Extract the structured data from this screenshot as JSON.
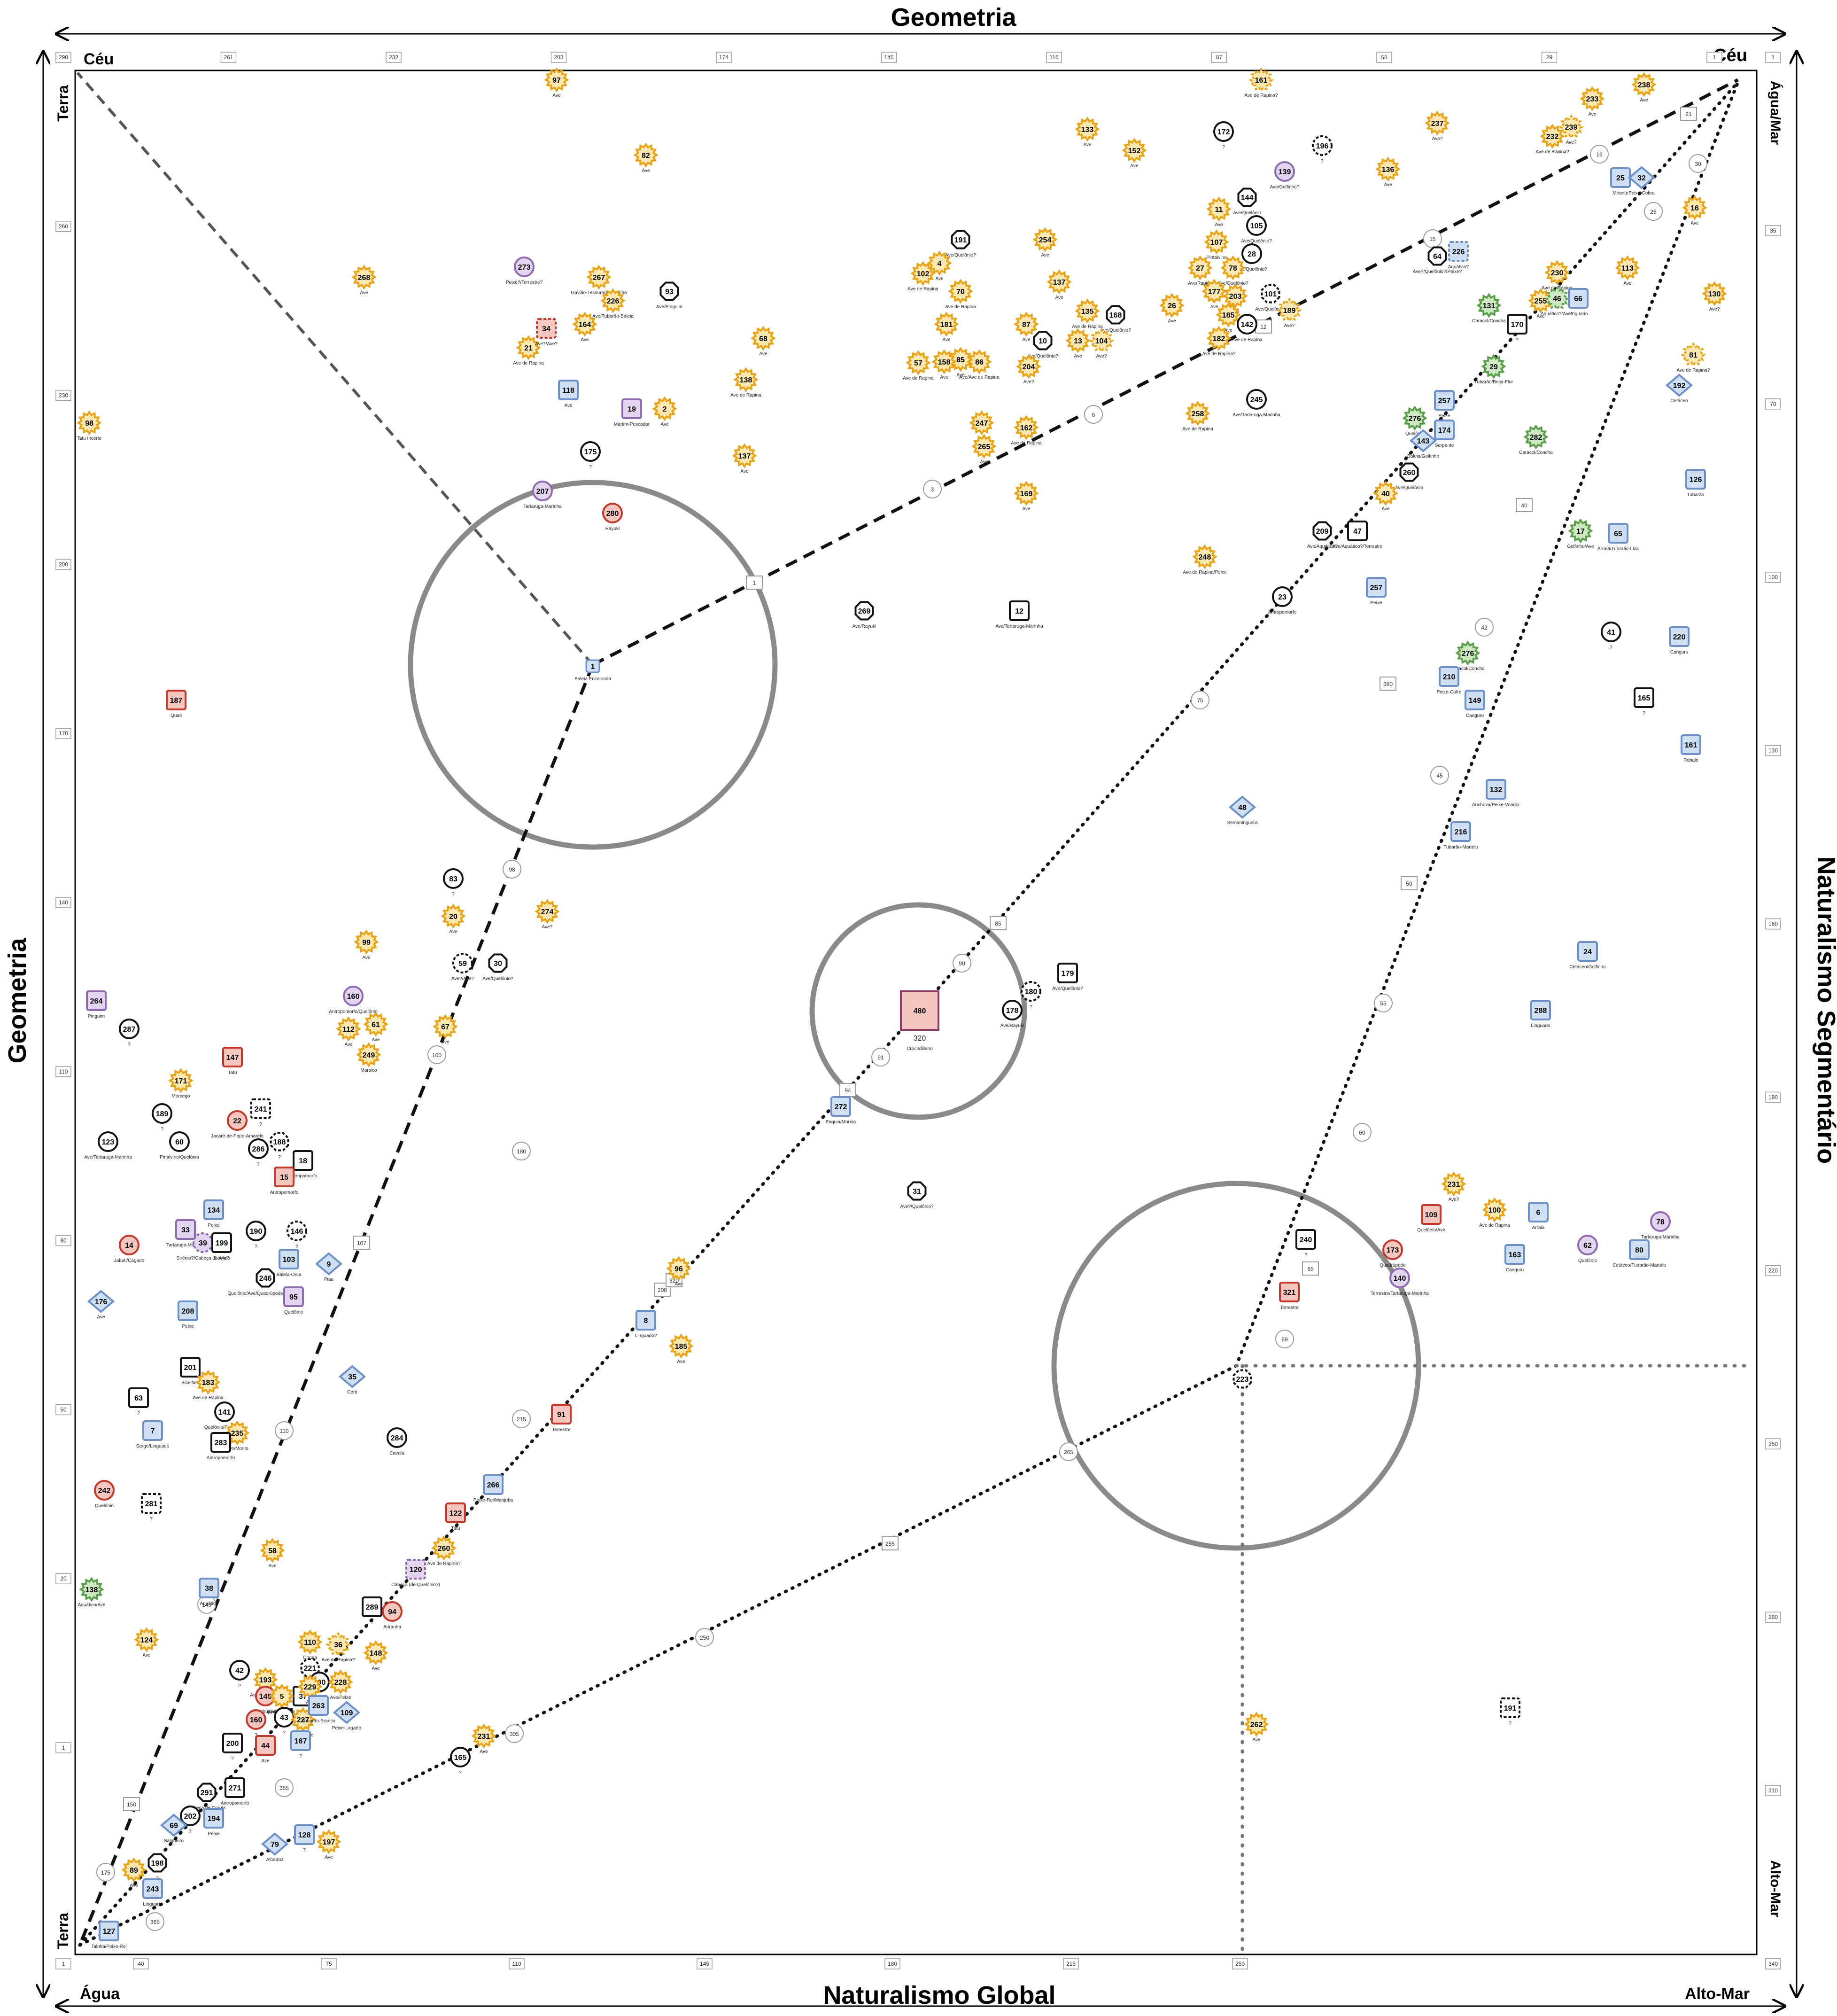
{
  "titles": {
    "top": "Geometria",
    "bottom": "Naturalismo Global",
    "left": "Geometria",
    "right": "Naturalismo Segmentário"
  },
  "corners": {
    "top_left": "Céu",
    "top_right": "Céu",
    "bottom_left": "Água",
    "bottom_right": "Alto-Mar",
    "left_top": "Terra",
    "left_bottom": "Terra",
    "right_top": "Água/Mar",
    "right_bottom": "Alto-Mar"
  },
  "axis_ticks": {
    "top": [
      "290",
      "261",
      "232",
      "203",
      "174",
      "145",
      "116",
      "87",
      "58",
      "29",
      "1"
    ],
    "bottom": [
      "1",
      "40",
      "75",
      "110",
      "145",
      "180",
      "215",
      "250",
      "340"
    ],
    "left": [
      "290",
      "260",
      "230",
      "200",
      "170",
      "140",
      "110",
      "80",
      "50",
      "20",
      "1"
    ],
    "right": [
      "1",
      "35",
      "70",
      "100",
      "130",
      "160",
      "190",
      "220",
      "250",
      "280",
      "310",
      "340"
    ]
  },
  "colors": {
    "bird": "#e8a317",
    "bird_fill": "#fbe7b0",
    "blue": "#6b8fc6",
    "blue_fill": "#cfe0f5",
    "red": "#c0392b",
    "red_fill": "#f6c6c0",
    "purple": "#8e6bb0",
    "purple_fill": "#e3d4ef",
    "green": "#5a9e4b",
    "green_fill": "#cfe8c4",
    "black": "#111111",
    "grey_circle": "#8a8a8a"
  },
  "center_labels": {
    "box_480": "480",
    "box_480_sub": "320",
    "box_480_name": "Crocodiliano",
    "node_1": "1",
    "node_1_name": "Baleia Encalhada"
  },
  "nodes": [
    {
      "n": "97",
      "t": "Ave",
      "c": "bird"
    },
    {
      "n": "161",
      "t": "Ave de Rapina?",
      "c": "bird"
    },
    {
      "n": "233",
      "t": "Ave",
      "c": "bird"
    },
    {
      "n": "238",
      "t": "Ave",
      "c": "bird"
    },
    {
      "n": "133",
      "t": "Ave",
      "c": "bird"
    },
    {
      "n": "152",
      "t": "Ave",
      "c": "bird"
    },
    {
      "n": "172",
      "t": "?",
      "c": "black"
    },
    {
      "n": "196",
      "t": "?",
      "c": "black"
    },
    {
      "n": "237",
      "t": "Ave?",
      "c": "bird"
    },
    {
      "n": "232",
      "t": "Ave de Rapina?",
      "c": "bird"
    },
    {
      "n": "239",
      "t": "Ave?",
      "c": "bird"
    },
    {
      "n": "82",
      "t": "Ave",
      "c": "bird"
    },
    {
      "n": "139",
      "t": "Ave/Golfinho?",
      "c": "purple"
    },
    {
      "n": "136",
      "t": "Ave",
      "c": "bird"
    },
    {
      "n": "25",
      "t": "Mirante",
      "c": "blue"
    },
    {
      "n": "32",
      "t": "Peixe-Cobra",
      "c": "blue"
    },
    {
      "n": "144",
      "t": "Ave/Quelônio",
      "c": "black"
    },
    {
      "n": "11",
      "t": "Ave",
      "c": "bird"
    },
    {
      "n": "105",
      "t": "Ave/Quelônio?",
      "c": "black"
    },
    {
      "n": "16",
      "t": "Ave",
      "c": "bird"
    },
    {
      "n": "191",
      "t": "Ave/Quelônio?",
      "c": "black"
    },
    {
      "n": "254",
      "t": "Ave",
      "c": "bird"
    },
    {
      "n": "107",
      "t": "Pintalvino",
      "c": "bird"
    },
    {
      "n": "28",
      "t": "Ave/Quelônio?",
      "c": "black"
    },
    {
      "n": "64",
      "t": "Ave?/Quelônio?/Peixe?",
      "c": "black"
    },
    {
      "n": "226",
      "t": "Aquático?",
      "c": "blue"
    },
    {
      "n": "268",
      "t": "Ave",
      "c": "bird"
    },
    {
      "n": "267",
      "t": "Gavião-Tesoura/Andorinha",
      "c": "bird"
    },
    {
      "n": "93",
      "t": "Ave/Pinguim",
      "c": "black"
    },
    {
      "n": "102",
      "t": "Ave de Rapina",
      "c": "bird"
    },
    {
      "n": "4",
      "t": "Ave",
      "c": "bird"
    },
    {
      "n": "137",
      "t": "Ave",
      "c": "bird"
    },
    {
      "n": "27",
      "t": "Ave/Rapina",
      "c": "bird"
    },
    {
      "n": "78",
      "t": "Ave/Quelônio?",
      "c": "bird"
    },
    {
      "n": "230",
      "t": "Ave de Rapina",
      "c": "bird"
    },
    {
      "n": "113",
      "t": "Ave",
      "c": "bird"
    },
    {
      "n": "226",
      "t": "Ave/Tubarão-Baleia",
      "c": "bird"
    },
    {
      "n": "70",
      "t": "Ave de Rapina",
      "c": "bird"
    },
    {
      "n": "177",
      "t": "Ave",
      "c": "bird"
    },
    {
      "n": "203",
      "t": "Ave",
      "c": "bird"
    },
    {
      "n": "101",
      "t": "Ave/Quelônio?",
      "c": "black"
    },
    {
      "n": "131",
      "t": "Caracol/Concha",
      "c": "green"
    },
    {
      "n": "255",
      "t": "Ave",
      "c": "bird"
    },
    {
      "n": "46",
      "t": "Aquático?/Ave?",
      "c": "green"
    },
    {
      "n": "66",
      "t": "Linguado",
      "c": "blue"
    },
    {
      "n": "130",
      "t": "Ave?",
      "c": "bird"
    },
    {
      "n": "164",
      "t": "Ave",
      "c": "bird"
    },
    {
      "n": "135",
      "t": "Ave de Rapina",
      "c": "bird"
    },
    {
      "n": "168",
      "t": "Ave/Quelônio?",
      "c": "black"
    },
    {
      "n": "26",
      "t": "Ave",
      "c": "bird"
    },
    {
      "n": "185",
      "t": "Ave",
      "c": "bird"
    },
    {
      "n": "142",
      "t": "Ave de Rapina",
      "c": "black"
    },
    {
      "n": "189",
      "t": "Ave?",
      "c": "bird"
    },
    {
      "n": "170",
      "t": "?",
      "c": "black"
    },
    {
      "n": "181",
      "t": "Ave",
      "c": "bird"
    },
    {
      "n": "87",
      "t": "Ave",
      "c": "bird"
    },
    {
      "n": "10",
      "t": "Ave/Quelônio?",
      "c": "black"
    },
    {
      "n": "13",
      "t": "Ave",
      "c": "bird"
    },
    {
      "n": "104",
      "t": "Ave?",
      "c": "bird"
    },
    {
      "n": "182",
      "t": "Ave de Rapina?",
      "c": "bird"
    },
    {
      "n": "21",
      "t": "Ave de Rapina",
      "c": "bird"
    },
    {
      "n": "68",
      "t": "Ave",
      "c": "bird"
    },
    {
      "n": "85",
      "t": "Ave",
      "c": "bird"
    },
    {
      "n": "57",
      "t": "Ave de Rapina",
      "c": "bird"
    },
    {
      "n": "158",
      "t": "Ave",
      "c": "bird"
    },
    {
      "n": "86",
      "t": "Ave/Ave de Rapina",
      "c": "bird"
    },
    {
      "n": "204",
      "t": "Ave?",
      "c": "bird"
    },
    {
      "n": "81",
      "t": "Ave de Rapina?",
      "c": "bird"
    },
    {
      "n": "29",
      "t": "Tubarão/Beija-Flor",
      "c": "green"
    },
    {
      "n": "192",
      "t": "Cetáceo",
      "c": "blue"
    },
    {
      "n": "138",
      "t": "Ave de Rapina",
      "c": "bird"
    },
    {
      "n": "19",
      "t": "Martim-Pescador",
      "c": "purple"
    },
    {
      "n": "2",
      "t": "Ave",
      "c": "bird"
    },
    {
      "n": "257",
      "t": "Peixe",
      "c": "blue"
    },
    {
      "n": "245",
      "t": "Ave/Tartaruga-Marinha",
      "c": "black"
    },
    {
      "n": "258",
      "t": "Ave de Rapina",
      "c": "bird"
    },
    {
      "n": "276",
      "t": "Quelônio",
      "c": "green"
    },
    {
      "n": "98",
      "t": "Tatu Incerto",
      "c": "bird"
    },
    {
      "n": "247",
      "t": "Ave",
      "c": "bird"
    },
    {
      "n": "162",
      "t": "Ave de Rapina",
      "c": "bird"
    },
    {
      "n": "174",
      "t": "Serpente",
      "c": "blue"
    },
    {
      "n": "282",
      "t": "Caracol/Concha",
      "c": "green"
    },
    {
      "n": "137",
      "t": "Ave",
      "c": "bird"
    },
    {
      "n": "265",
      "t": "Ave",
      "c": "bird"
    },
    {
      "n": "143",
      "t": "Baleia/Golfinho",
      "c": "blue"
    },
    {
      "n": "126",
      "t": "Tubarão",
      "c": "blue"
    },
    {
      "n": "207",
      "t": "Tartaruga-Marinha",
      "c": "purple"
    },
    {
      "n": "169",
      "t": "Ave",
      "c": "bird"
    },
    {
      "n": "260",
      "t": "Ave/Quelônio",
      "c": "black"
    },
    {
      "n": "40",
      "t": "Ave",
      "c": "bird"
    },
    {
      "n": "17",
      "t": "Golfinho/Ave",
      "c": "green"
    },
    {
      "n": "65",
      "t": "Arraia/Tubarão-Lixa",
      "c": "blue"
    },
    {
      "n": "209",
      "t": "Ave/Aquático?",
      "c": "black"
    },
    {
      "n": "47",
      "t": "Ave/Aquático?/Terrestre",
      "c": "black"
    },
    {
      "n": "248",
      "t": "Ave de Rapina/Peixe",
      "c": "bird"
    },
    {
      "n": "257",
      "t": "Peixe",
      "c": "blue"
    },
    {
      "n": "269",
      "t": "Ave/Rayuki",
      "c": "black"
    },
    {
      "n": "12",
      "t": "Ave/Tartaruga-Marinha",
      "c": "black"
    },
    {
      "n": "23",
      "t": "Antropomorfo",
      "c": "black"
    },
    {
      "n": "41",
      "t": "?",
      "c": "black"
    },
    {
      "n": "220",
      "t": "Canguru",
      "c": "blue"
    },
    {
      "n": "187",
      "t": "Quati",
      "c": "red"
    },
    {
      "n": "276",
      "t": "Caracol/Concha",
      "c": "green"
    },
    {
      "n": "210",
      "t": "Peixe-Cofre",
      "c": "blue"
    },
    {
      "n": "149",
      "t": "Canguru",
      "c": "blue"
    },
    {
      "n": "165",
      "t": "?",
      "c": "black"
    },
    {
      "n": "161",
      "t": "Robalo",
      "c": "blue"
    },
    {
      "n": "132",
      "t": "Anchova/Peixe-Voador",
      "c": "blue"
    },
    {
      "n": "48",
      "t": "Semaninguara",
      "c": "blue"
    },
    {
      "n": "216",
      "t": "Tubarão-Martelo",
      "c": "blue"
    },
    {
      "n": "83",
      "t": "?",
      "c": "black"
    },
    {
      "n": "274",
      "t": "Ave?",
      "c": "bird"
    },
    {
      "n": "20",
      "t": "Ave",
      "c": "bird"
    },
    {
      "n": "24",
      "t": "Cetáceo/Golfinho",
      "c": "blue"
    },
    {
      "n": "99",
      "t": "Ave",
      "c": "bird"
    },
    {
      "n": "59",
      "t": "Ave?/Ave?",
      "c": "black"
    },
    {
      "n": "30",
      "t": "Ave/Quelônio?",
      "c": "black"
    },
    {
      "n": "179",
      "t": "Ave/Quelônio?",
      "c": "black"
    },
    {
      "n": "180",
      "t": "?",
      "c": "black"
    },
    {
      "n": "178",
      "t": "Ave/Rayuki",
      "c": "black"
    },
    {
      "n": "160",
      "t": "Antropomorfo/Quelônio",
      "c": "purple"
    },
    {
      "n": "264",
      "t": "Pinguim",
      "c": "purple"
    },
    {
      "n": "112",
      "t": "Ave",
      "c": "bird"
    },
    {
      "n": "61",
      "t": "Ave",
      "c": "bird"
    },
    {
      "n": "67",
      "t": "Ave",
      "c": "bird"
    },
    {
      "n": "288",
      "t": "Linguado",
      "c": "blue"
    },
    {
      "n": "287",
      "t": "?",
      "c": "black"
    },
    {
      "n": "147",
      "t": "Tatu",
      "c": "red"
    },
    {
      "n": "249",
      "t": "Marsico",
      "c": "bird"
    },
    {
      "n": "171",
      "t": "Morcego",
      "c": "bird"
    },
    {
      "n": "272",
      "t": "Enguia/Moreia",
      "c": "blue"
    },
    {
      "n": "189",
      "t": "?",
      "c": "black"
    },
    {
      "n": "22",
      "t": "Jacaré-de-Papo-Amarelo",
      "c": "red"
    },
    {
      "n": "241",
      "t": "?",
      "c": "black"
    },
    {
      "n": "123",
      "t": "Ave/Tartaruga-Marinha",
      "c": "black"
    },
    {
      "n": "60",
      "t": "Pinalvino/Quelônio",
      "c": "black"
    },
    {
      "n": "188",
      "t": "?",
      "c": "black"
    },
    {
      "n": "18",
      "t": "Antropomorfo",
      "c": "black"
    },
    {
      "n": "286",
      "t": "?",
      "c": "black"
    },
    {
      "n": "15",
      "t": "Antropomorfo",
      "c": "red"
    },
    {
      "n": "31",
      "t": "Ave?/Quelônio?",
      "c": "black"
    },
    {
      "n": "231",
      "t": "Ave?",
      "c": "bird"
    },
    {
      "n": "134",
      "t": "Peixe",
      "c": "blue"
    },
    {
      "n": "109",
      "t": "Quelônio/Ave",
      "c": "red"
    },
    {
      "n": "100",
      "t": "Ave de Rapina",
      "c": "bird"
    },
    {
      "n": "6",
      "t": "Arraia",
      "c": "blue"
    },
    {
      "n": "78",
      "t": "Tartaruga-Marinha",
      "c": "purple"
    },
    {
      "n": "33",
      "t": "Tartaruga-Marinha",
      "c": "purple"
    },
    {
      "n": "39",
      "t": "Sirênio?/Cabeça de Ave?",
      "c": "purple"
    },
    {
      "n": "199",
      "t": "Bicefalo",
      "c": "black"
    },
    {
      "n": "190",
      "t": "?",
      "c": "black"
    },
    {
      "n": "146",
      "t": "?",
      "c": "black"
    },
    {
      "n": "14",
      "t": "Jabuti/Cágado",
      "c": "red"
    },
    {
      "n": "240",
      "t": "?",
      "c": "black"
    },
    {
      "n": "173",
      "t": "Quadrúpede",
      "c": "red"
    },
    {
      "n": "163",
      "t": "Canguru",
      "c": "blue"
    },
    {
      "n": "62",
      "t": "Quelônio",
      "c": "purple"
    },
    {
      "n": "80",
      "t": "Cetáceo/Tubarão-Martelo",
      "c": "blue"
    },
    {
      "n": "103",
      "t": "Baleia-Orca",
      "c": "blue"
    },
    {
      "n": "9",
      "t": "Piau",
      "c": "blue"
    },
    {
      "n": "246",
      "t": "Quelônio/Ave/Quadrúpede/Quelônio",
      "c": "black"
    },
    {
      "n": "95",
      "t": "Quelônio",
      "c": "purple"
    },
    {
      "n": "96",
      "t": "Ave",
      "c": "bird"
    },
    {
      "n": "321",
      "t": "Terrestre",
      "c": "red"
    },
    {
      "n": "140",
      "t": "Terrestre/Tartaruga-Marinha",
      "c": "purple"
    },
    {
      "n": "176",
      "t": "Ave",
      "c": "blue"
    },
    {
      "n": "208",
      "t": "Peixe",
      "c": "blue"
    },
    {
      "n": "8",
      "t": "Linguado?",
      "c": "blue"
    },
    {
      "n": "185",
      "t": "Ave",
      "c": "bird"
    },
    {
      "n": "201",
      "t": "Biceifalo",
      "c": "black"
    },
    {
      "n": "183",
      "t": "Ave de Rapina",
      "c": "bird"
    },
    {
      "n": "35",
      "t": "Cerú",
      "c": "blue"
    },
    {
      "n": "223",
      "t": "?",
      "c": "black"
    },
    {
      "n": "63",
      "t": "?",
      "c": "black"
    },
    {
      "n": "141",
      "t": "Quelônio/Pintalvino",
      "c": "black"
    },
    {
      "n": "7",
      "t": "Sargo/Linguado",
      "c": "blue"
    },
    {
      "n": "235",
      "t": "Ave/Morito",
      "c": "bird"
    },
    {
      "n": "283",
      "t": "Antropomorfo",
      "c": "black"
    },
    {
      "n": "284",
      "t": "Cavala",
      "c": "black"
    },
    {
      "n": "91",
      "t": "Terrestre",
      "c": "red"
    },
    {
      "n": "242",
      "t": "Quelônio",
      "c": "red"
    },
    {
      "n": "281",
      "t": "?",
      "c": "black"
    },
    {
      "n": "266",
      "t": "Peixe-Rei/Manjuba",
      "c": "blue"
    },
    {
      "n": "122",
      "t": "Tatu",
      "c": "red"
    },
    {
      "n": "58",
      "t": "Ave",
      "c": "bird"
    },
    {
      "n": "260",
      "t": "Ave de Rapina?",
      "c": "bird"
    },
    {
      "n": "138",
      "t": "Aquático/Ave",
      "c": "green"
    },
    {
      "n": "120",
      "t": "Cabeça (de Quelônio?)",
      "c": "purple"
    },
    {
      "n": "38",
      "t": "Aquático",
      "c": "blue"
    },
    {
      "n": "289",
      "t": "?",
      "c": "black"
    },
    {
      "n": "94",
      "t": "Ariranha",
      "c": "red"
    },
    {
      "n": "124",
      "t": "Ave",
      "c": "bird"
    },
    {
      "n": "110",
      "t": "Coruja",
      "c": "bird"
    },
    {
      "n": "36",
      "t": "Ave de Rapina?",
      "c": "bird"
    },
    {
      "n": "148",
      "t": "Ave",
      "c": "bird"
    },
    {
      "n": "42",
      "t": "?",
      "c": "black"
    },
    {
      "n": "221",
      "t": "?",
      "c": "black"
    },
    {
      "n": "193",
      "t": "Ave de Rapina",
      "c": "bird"
    },
    {
      "n": "290",
      "t": "?",
      "c": "black"
    },
    {
      "n": "228",
      "t": "Ave/Peixe",
      "c": "bird"
    },
    {
      "n": "145",
      "t": "Quadrúpede",
      "c": "red"
    },
    {
      "n": "37",
      "t": "?",
      "c": "black"
    },
    {
      "n": "5",
      "t": "Quadrúpede",
      "c": "bird"
    },
    {
      "n": "229",
      "t": "Ave",
      "c": "bird"
    },
    {
      "n": "262",
      "t": "Ave",
      "c": "bird"
    },
    {
      "n": "191",
      "t": "?",
      "c": "black"
    },
    {
      "n": "160",
      "t": "?",
      "c": "red"
    },
    {
      "n": "43",
      "t": "?",
      "c": "black"
    },
    {
      "n": "227",
      "t": "Ave/Peixe",
      "c": "bird"
    },
    {
      "n": "263",
      "t": "Tubarão-Branco",
      "c": "blue"
    },
    {
      "n": "109",
      "t": "Peixe-Lagarto",
      "c": "blue"
    },
    {
      "n": "44",
      "t": "Ave",
      "c": "red"
    },
    {
      "n": "167",
      "t": "?",
      "c": "blue"
    },
    {
      "n": "200",
      "t": "?",
      "c": "black"
    },
    {
      "n": "231",
      "t": "Ave",
      "c": "bird"
    },
    {
      "n": "165",
      "t": "?",
      "c": "black"
    },
    {
      "n": "291",
      "t": "Cabeça de Coruja",
      "c": "black"
    },
    {
      "n": "271",
      "t": "Antropomorfo",
      "c": "black"
    },
    {
      "n": "202",
      "t": "?",
      "c": "black"
    },
    {
      "n": "69",
      "t": "Salgueiro",
      "c": "blue"
    },
    {
      "n": "194",
      "t": "Peixe",
      "c": "blue"
    },
    {
      "n": "128",
      "t": "?",
      "c": "blue"
    },
    {
      "n": "79",
      "t": "Albatroz",
      "c": "blue"
    },
    {
      "n": "197",
      "t": "Ave",
      "c": "bird"
    },
    {
      "n": "198",
      "t": "?",
      "c": "black"
    },
    {
      "n": "89",
      "t": "Ave",
      "c": "bird"
    },
    {
      "n": "243",
      "t": "Linguado",
      "c": "blue"
    },
    {
      "n": "127",
      "t": "Tainha/Peixe-Rei",
      "c": "blue"
    },
    {
      "n": "273",
      "t": "Peixe?/Terrestre?",
      "c": "purple"
    },
    {
      "n": "34",
      "t": "Ave?/Ave?",
      "c": "red"
    },
    {
      "n": "118",
      "t": "Ave",
      "c": "blue"
    },
    {
      "n": "175",
      "t": "?",
      "c": "black"
    },
    {
      "n": "280",
      "t": "Rayuki",
      "c": "red"
    }
  ],
  "path_labels": [
    "1",
    "3",
    "6",
    "12",
    "15",
    "16",
    "21",
    "25",
    "30",
    "40",
    "42",
    "45",
    "50",
    "55",
    "60",
    "65",
    "69",
    "75",
    "85",
    "90",
    "91",
    "94",
    "98",
    "100",
    "107",
    "110",
    "145",
    "150",
    "175",
    "180",
    "200",
    "215",
    "250",
    "255",
    "265",
    "305",
    "320",
    "355",
    "365",
    "380"
  ]
}
